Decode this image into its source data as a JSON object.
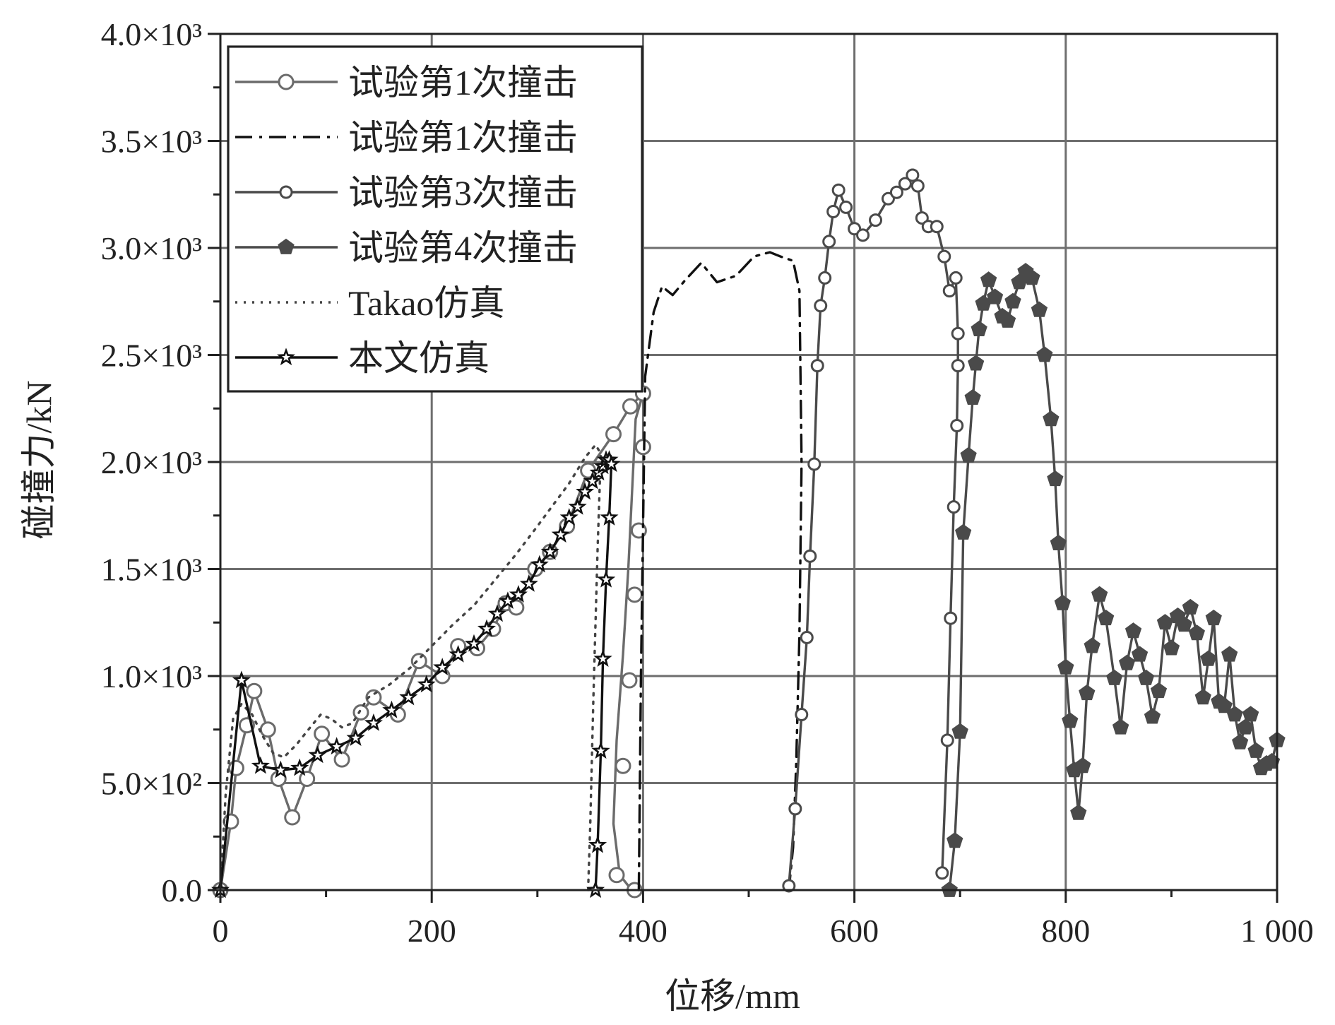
{
  "chart_data": {
    "type": "line",
    "xlabel": "位移/mm",
    "ylabel": "碰撞力/kN",
    "xlim": [
      0,
      1000
    ],
    "ylim": [
      0,
      4000
    ],
    "x_ticks": [
      0,
      200,
      400,
      600,
      800,
      1000
    ],
    "x_tick_labels": [
      "0",
      "200",
      "400",
      "600",
      "800",
      "1 000"
    ],
    "y_ticks": [
      0,
      500,
      1000,
      1500,
      2000,
      2500,
      3000,
      3500,
      4000
    ],
    "y_tick_labels": [
      "0.0",
      "5.0×10²",
      "1.0×10³",
      "1.5×10³",
      "2.0×10³",
      "2.5×10³",
      "3.0×10³",
      "3.5×10³",
      "4.0×10³"
    ],
    "grid": true,
    "legend_position": "top-left",
    "series": [
      {
        "name": "试验第1次撞击",
        "color": "#6b6b6b",
        "line": "solid",
        "marker": "circle",
        "x": [
          0,
          10,
          15,
          25,
          32,
          45,
          55,
          68,
          82,
          96,
          115,
          133,
          145,
          168,
          188,
          210,
          225,
          243,
          258,
          270,
          280,
          298,
          312,
          328,
          348,
          372,
          388,
          400,
          393,
          390,
          386,
          381,
          375,
          372,
          378,
          386,
          392,
          397,
          395
        ],
        "y": [
          0,
          320,
          570,
          770,
          930,
          750,
          520,
          340,
          520,
          730,
          610,
          830,
          900,
          820,
          1070,
          1000,
          1140,
          1130,
          1220,
          1340,
          1320,
          1500,
          1580,
          1700,
          1960,
          2130,
          2260,
          2320,
          2200,
          1900,
          1500,
          1100,
          700,
          310,
          70,
          20,
          0,
          0,
          0
        ],
        "markers_x": [
          0,
          10,
          15,
          25,
          32,
          45,
          55,
          68,
          82,
          96,
          115,
          133,
          145,
          168,
          188,
          210,
          225,
          243,
          258,
          270,
          280,
          298,
          312,
          328,
          348,
          372,
          388,
          400,
          400,
          396,
          392,
          387,
          381,
          375,
          392
        ],
        "markers_y": [
          0,
          320,
          570,
          770,
          930,
          750,
          520,
          340,
          520,
          730,
          610,
          830,
          900,
          820,
          1070,
          1000,
          1140,
          1130,
          1220,
          1340,
          1320,
          1500,
          1580,
          1700,
          1960,
          2130,
          2260,
          2320,
          2070,
          1680,
          1380,
          980,
          580,
          70,
          0
        ]
      },
      {
        "name": "试验第1次撞击",
        "color": "#111111",
        "line": "dashdot",
        "marker": "none",
        "x": [
          396,
          398,
          402,
          410,
          418,
          428,
          440,
          455,
          470,
          488,
          505,
          520,
          530,
          542,
          548,
          550,
          548,
          545,
          542,
          538
        ],
        "y": [
          0,
          1000,
          2400,
          2700,
          2820,
          2780,
          2850,
          2930,
          2840,
          2870,
          2960,
          2980,
          2960,
          2940,
          2800,
          2000,
          1200,
          600,
          200,
          0
        ]
      },
      {
        "name": "试验第3次撞击",
        "color": "#4a4a4a",
        "line": "solid",
        "marker": "circle-small",
        "x": [
          538,
          544,
          550,
          555,
          558,
          562,
          565,
          568,
          572,
          576,
          580,
          585,
          592,
          600,
          608,
          620,
          632,
          640,
          648,
          655,
          660,
          664,
          670,
          678,
          685,
          690,
          696,
          698,
          698,
          697,
          694,
          691,
          688,
          683
        ],
        "y": [
          20,
          380,
          820,
          1180,
          1560,
          1990,
          2450,
          2730,
          2860,
          3030,
          3170,
          3270,
          3190,
          3090,
          3060,
          3130,
          3230,
          3260,
          3300,
          3340,
          3290,
          3140,
          3100,
          3100,
          2960,
          2800,
          2860,
          2600,
          2450,
          2170,
          1790,
          1270,
          700,
          80
        ],
        "markers_x": [
          538,
          544,
          550,
          555,
          558,
          562,
          565,
          568,
          572,
          576,
          580,
          585,
          592,
          600,
          608,
          620,
          632,
          640,
          648,
          655,
          660,
          664,
          670,
          678,
          685,
          690,
          696,
          698,
          698,
          697,
          694,
          691,
          688,
          683
        ],
        "markers_y": [
          20,
          380,
          820,
          1180,
          1560,
          1990,
          2450,
          2730,
          2860,
          3030,
          3170,
          3270,
          3190,
          3090,
          3060,
          3130,
          3230,
          3260,
          3300,
          3340,
          3290,
          3140,
          3100,
          3100,
          2960,
          2800,
          2860,
          2600,
          2450,
          2170,
          1790,
          1270,
          700,
          80
        ]
      },
      {
        "name": "试验第4次撞击",
        "color": "#4a4a4a",
        "line": "solid",
        "marker": "pentagon",
        "x": [
          690,
          695,
          700,
          703,
          708,
          712,
          715,
          718,
          722,
          727,
          733,
          740,
          745,
          750,
          756,
          762,
          768,
          775,
          780,
          786,
          790,
          793,
          797,
          800,
          804,
          808,
          812,
          816,
          820,
          825,
          832,
          838,
          846,
          852,
          858,
          864,
          870,
          876,
          882,
          888,
          894,
          900,
          906,
          912,
          918,
          924,
          930,
          935,
          940,
          945,
          950,
          955,
          960,
          965,
          970,
          975,
          980,
          985,
          990,
          995,
          1000
        ],
        "y": [
          0,
          230,
          740,
          1670,
          2030,
          2300,
          2460,
          2620,
          2740,
          2850,
          2770,
          2680,
          2660,
          2750,
          2840,
          2890,
          2860,
          2710,
          2500,
          2200,
          1920,
          1620,
          1340,
          1040,
          790,
          560,
          360,
          580,
          920,
          1140,
          1380,
          1270,
          990,
          760,
          1060,
          1210,
          1100,
          990,
          810,
          930,
          1250,
          1130,
          1280,
          1240,
          1320,
          1200,
          900,
          1080,
          1270,
          880,
          860,
          1100,
          820,
          690,
          760,
          820,
          650,
          570,
          590,
          600,
          700
        ],
        "markers_x": [
          690,
          695,
          700,
          703,
          708,
          712,
          715,
          718,
          722,
          727,
          733,
          740,
          745,
          750,
          756,
          762,
          768,
          775,
          780,
          786,
          790,
          793,
          797,
          800,
          804,
          808,
          812,
          816,
          820,
          825,
          832,
          838,
          846,
          852,
          858,
          864,
          870,
          876,
          882,
          888,
          894,
          900,
          906,
          912,
          918,
          924,
          930,
          935,
          940,
          945,
          950,
          955,
          960,
          965,
          970,
          975,
          980,
          985,
          990,
          995,
          1000
        ],
        "markers_y": [
          0,
          230,
          740,
          1670,
          2030,
          2300,
          2460,
          2620,
          2740,
          2850,
          2770,
          2680,
          2660,
          2750,
          2840,
          2890,
          2860,
          2710,
          2500,
          2200,
          1920,
          1620,
          1340,
          1040,
          790,
          560,
          360,
          580,
          920,
          1140,
          1380,
          1270,
          990,
          760,
          1060,
          1210,
          1100,
          990,
          810,
          930,
          1250,
          1130,
          1280,
          1240,
          1320,
          1200,
          900,
          1080,
          1270,
          880,
          860,
          1100,
          820,
          690,
          760,
          820,
          650,
          570,
          590,
          600,
          700
        ]
      },
      {
        "name": "Takao仿真",
        "color": "#444444",
        "line": "dotted",
        "marker": "none",
        "x": [
          0,
          5,
          12,
          20,
          30,
          40,
          50,
          60,
          72,
          85,
          95,
          105,
          115,
          125,
          140,
          160,
          180,
          200,
          220,
          240,
          260,
          280,
          300,
          315,
          330,
          345,
          355,
          360,
          357,
          353,
          350,
          348
        ],
        "y": [
          0,
          450,
          800,
          870,
          820,
          720,
          640,
          620,
          680,
          760,
          820,
          800,
          760,
          780,
          900,
          960,
          1040,
          1140,
          1240,
          1330,
          1450,
          1570,
          1700,
          1800,
          1900,
          2020,
          2080,
          2040,
          1600,
          900,
          300,
          0
        ]
      },
      {
        "name": "本文仿真",
        "color": "#111111",
        "line": "solid",
        "marker": "star",
        "x": [
          0,
          20,
          38,
          57,
          75,
          92,
          110,
          128,
          145,
          162,
          178,
          195,
          210,
          225,
          240,
          252,
          262,
          272,
          282,
          292,
          302,
          312,
          322,
          330,
          338,
          345,
          352,
          358,
          362,
          365,
          368,
          370,
          368,
          365,
          362,
          360,
          357,
          355,
          353
        ],
        "y": [
          0,
          980,
          580,
          560,
          570,
          630,
          670,
          710,
          780,
          840,
          900,
          960,
          1040,
          1100,
          1150,
          1220,
          1290,
          1350,
          1380,
          1430,
          1520,
          1580,
          1660,
          1740,
          1790,
          1860,
          1910,
          1950,
          1980,
          2010,
          2010,
          1990,
          1740,
          1450,
          1080,
          650,
          210,
          0,
          0
        ],
        "markers_x": [
          0,
          20,
          38,
          57,
          75,
          92,
          110,
          128,
          145,
          162,
          178,
          195,
          210,
          225,
          240,
          252,
          262,
          272,
          282,
          292,
          302,
          312,
          322,
          330,
          338,
          345,
          352,
          358,
          362,
          365,
          368,
          370,
          368,
          365,
          362,
          360,
          357,
          355
        ],
        "markers_y": [
          0,
          980,
          580,
          560,
          570,
          630,
          670,
          710,
          780,
          840,
          900,
          960,
          1040,
          1100,
          1150,
          1220,
          1290,
          1350,
          1380,
          1430,
          1520,
          1580,
          1660,
          1740,
          1790,
          1860,
          1910,
          1950,
          1980,
          2010,
          2010,
          1990,
          1740,
          1450,
          1080,
          650,
          210,
          0
        ]
      }
    ]
  }
}
